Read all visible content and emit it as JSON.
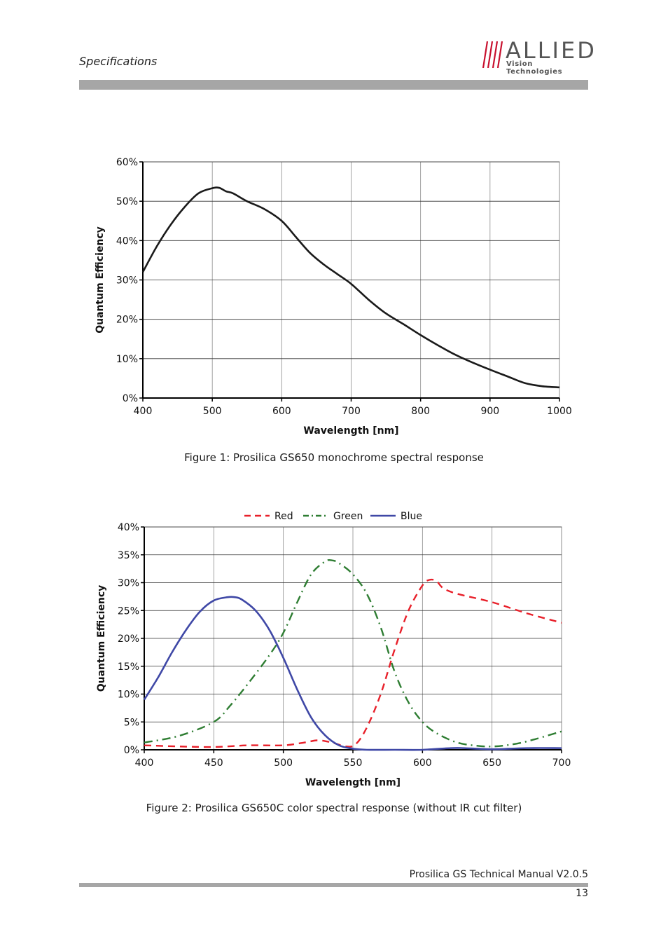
{
  "header": {
    "section_title": "Specifications",
    "logo_name": "ALLIED",
    "logo_sub": "Vision Technologies"
  },
  "footer": {
    "manual": "Prosilica GS Technical Manual  V2.0.5",
    "page_number": "13"
  },
  "colors": {
    "bar": "#a6a6a6",
    "red": "#e8202a",
    "green": "#2e7d32",
    "blue": "#3f48a6",
    "mono": "#1a1a1a"
  },
  "figures": [
    {
      "caption": "Figure 1: Prosilica GS650 monochrome spectral response"
    },
    {
      "caption": "Figure 2: Prosilica GS650C color spectral response (without IR cut filter)"
    }
  ],
  "chart_data": [
    {
      "type": "line",
      "xlabel": "Wavelength [nm]",
      "ylabel": "Quantum Efficiency",
      "xlim": [
        400,
        1000
      ],
      "ylim": [
        0,
        60
      ],
      "x_ticks": [
        400,
        500,
        600,
        700,
        800,
        900,
        1000
      ],
      "y_ticks": [
        0,
        10,
        20,
        30,
        40,
        50,
        60
      ],
      "y_tick_labels": [
        "0%",
        "10%",
        "20%",
        "30%",
        "40%",
        "50%",
        "60%"
      ],
      "grid": true,
      "series": [
        {
          "x": [
            400,
            420,
            440,
            460,
            480,
            500,
            510,
            520,
            530,
            550,
            575,
            600,
            620,
            640,
            660,
            680,
            700,
            725,
            750,
            775,
            800,
            825,
            850,
            875,
            900,
            925,
            950,
            975,
            1000
          ],
          "values": [
            32,
            38.5,
            44,
            48.5,
            52,
            53.3,
            53.4,
            52.5,
            52,
            50,
            48,
            45,
            41,
            37,
            34,
            31.5,
            29,
            25,
            21.5,
            18.8,
            16,
            13.4,
            11,
            9,
            7.2,
            5.5,
            3.8,
            3,
            2.7
          ],
          "color": "#1a1a1a",
          "style": "solid"
        }
      ]
    },
    {
      "type": "line",
      "xlabel": "Wavelength [nm]",
      "ylabel": "Quantum Efficiency",
      "xlim": [
        400,
        700
      ],
      "ylim": [
        0,
        40
      ],
      "x_ticks": [
        400,
        450,
        500,
        550,
        600,
        650,
        700
      ],
      "y_ticks": [
        0,
        5,
        10,
        15,
        20,
        25,
        30,
        35,
        40
      ],
      "y_tick_labels": [
        "0%",
        "5%",
        "10%",
        "15%",
        "20%",
        "25%",
        "30%",
        "35%",
        "40%"
      ],
      "grid": true,
      "legend_position": "top-center",
      "series": [
        {
          "name": "Red",
          "color": "#e8202a",
          "style": "dashed",
          "x": [
            400,
            425,
            450,
            475,
            500,
            515,
            525,
            535,
            545,
            552,
            560,
            570,
            580,
            590,
            600,
            605,
            610,
            615,
            625,
            650,
            675,
            700
          ],
          "values": [
            0.8,
            0.6,
            0.5,
            0.8,
            0.8,
            1.3,
            1.7,
            1.3,
            0.6,
            1,
            4,
            10,
            18,
            25,
            29.5,
            30.5,
            30.3,
            29,
            28,
            26.5,
            24.5,
            22.8
          ]
        },
        {
          "name": "Green",
          "color": "#2e7d32",
          "style": "dashdot",
          "x": [
            400,
            425,
            450,
            462,
            475,
            490,
            500,
            510,
            520,
            530,
            535,
            540,
            550,
            560,
            570,
            580,
            590,
            600,
            610,
            625,
            640,
            650,
            660,
            675,
            700
          ],
          "values": [
            1.3,
            2.5,
            5,
            8,
            12,
            17,
            21,
            26.5,
            31.5,
            33.8,
            34,
            33.5,
            31.5,
            28,
            22,
            14,
            8.5,
            5,
            3,
            1.3,
            0.7,
            0.6,
            0.8,
            1.5,
            3.3
          ]
        },
        {
          "name": "Blue",
          "color": "#3f48a6",
          "style": "solid",
          "x": [
            400,
            410,
            420,
            430,
            440,
            450,
            460,
            465,
            470,
            480,
            490,
            500,
            510,
            520,
            530,
            540,
            550,
            560,
            580,
            600,
            620,
            630,
            650,
            675,
            700
          ],
          "values": [
            9,
            13,
            17.5,
            21.5,
            24.8,
            26.8,
            27.4,
            27.4,
            27,
            25,
            21.5,
            16.5,
            10.8,
            5.8,
            2.6,
            0.8,
            0.2,
            0,
            0,
            0,
            0.3,
            0.3,
            0.1,
            0.3,
            0.3
          ]
        }
      ]
    }
  ]
}
